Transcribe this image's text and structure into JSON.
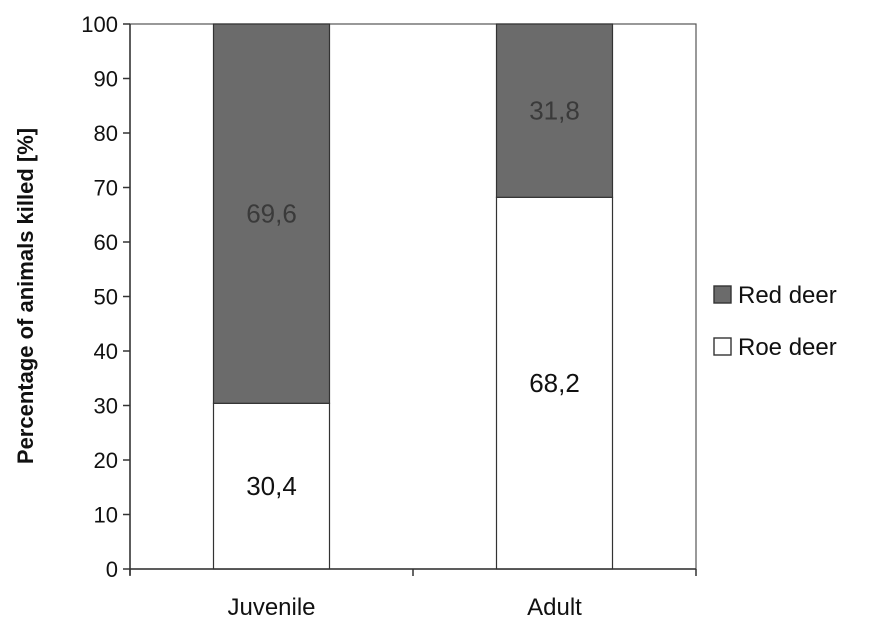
{
  "chart_data": {
    "type": "bar",
    "stacked": true,
    "categories": [
      "Juvenile",
      "Adult"
    ],
    "series": [
      {
        "name": "Roe deer",
        "values": [
          30.4,
          68.2
        ],
        "labels": [
          "30,4",
          "68,2"
        ],
        "color": "#ffffff"
      },
      {
        "name": "Red deer",
        "values": [
          69.6,
          31.8
        ],
        "labels": [
          "69,6",
          "31,8"
        ],
        "color": "#6b6b6b"
      }
    ],
    "ylabel": "Percentage of animals killed [%]",
    "xlabel": "",
    "title": "",
    "ylim": [
      0,
      100
    ],
    "yticks": [
      0,
      10,
      20,
      30,
      40,
      50,
      60,
      70,
      80,
      90,
      100
    ],
    "grid": false,
    "legend_position": "right",
    "legend": [
      {
        "name": "Red deer",
        "color": "#6b6b6b"
      },
      {
        "name": "Roe deer",
        "color": "#ffffff"
      }
    ]
  }
}
